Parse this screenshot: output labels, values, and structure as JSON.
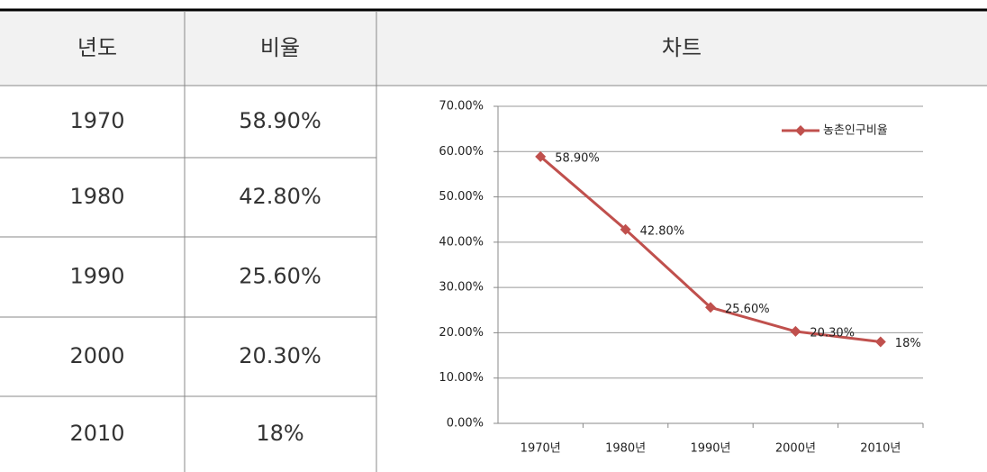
{
  "table": {
    "headers": [
      "년도",
      "비율",
      "차트"
    ],
    "rows": [
      [
        "1970",
        "58.90%"
      ],
      [
        "1980",
        "42.80%"
      ],
      [
        "1990",
        "25.60%"
      ],
      [
        "2000",
        "20.30%"
      ],
      [
        "2010",
        "18%"
      ]
    ]
  },
  "chart_data": {
    "type": "line",
    "categories": [
      "1970년",
      "1980년",
      "1990년",
      "2000년",
      "2010년"
    ],
    "series": [
      {
        "name": "농촌인구비율",
        "color": "#c0504d",
        "values": [
          58.9,
          42.8,
          25.6,
          20.3,
          18
        ],
        "value_labels": [
          "58.90%",
          "42.80%",
          "25.60%",
          "20.30%",
          "18%"
        ]
      }
    ],
    "ylim": [
      0,
      70
    ],
    "yticks": [
      {
        "value": 0,
        "label": "0.00%"
      },
      {
        "value": 10,
        "label": "10.00%"
      },
      {
        "value": 20,
        "label": "20.00%"
      },
      {
        "value": 30,
        "label": "30.00%"
      },
      {
        "value": 40,
        "label": "40.00%"
      },
      {
        "value": 50,
        "label": "50.00%"
      },
      {
        "value": 60,
        "label": "60.00%"
      },
      {
        "value": 70,
        "label": "70.00%"
      }
    ],
    "grid": true,
    "legend": "top-right"
  }
}
